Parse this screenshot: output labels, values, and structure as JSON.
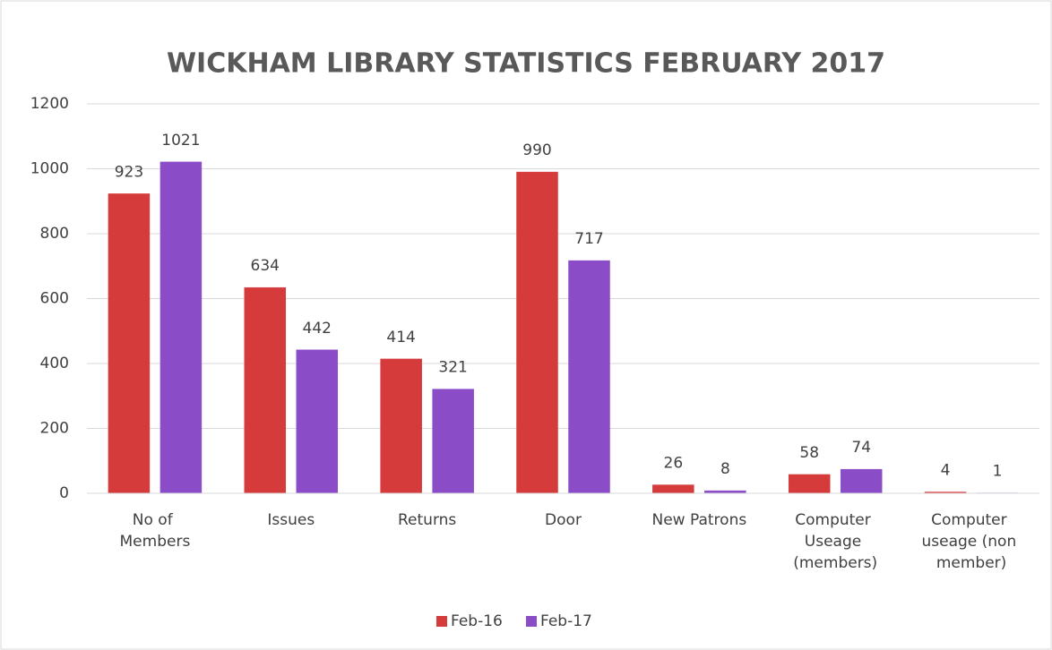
{
  "chart_data": {
    "type": "bar",
    "title": "WICKHAM LIBRARY STATISTICS FEBRUARY 2017",
    "categories": [
      "No of Members",
      "Issues",
      "Returns",
      "Door",
      "New Patrons",
      "Computer Useage (members)",
      "Computer useage (non member)"
    ],
    "series": [
      {
        "name": "Feb-16",
        "color": "#d63b3b",
        "values": [
          923,
          634,
          414,
          990,
          26,
          58,
          4
        ]
      },
      {
        "name": "Feb-17",
        "color": "#8a4cc7",
        "values": [
          1021,
          442,
          321,
          717,
          8,
          74,
          1
        ]
      }
    ],
    "ylim": [
      0,
      1200
    ],
    "yticks": [
      0,
      200,
      400,
      600,
      800,
      1000,
      1200
    ],
    "grid": true,
    "legend": "bottom"
  }
}
